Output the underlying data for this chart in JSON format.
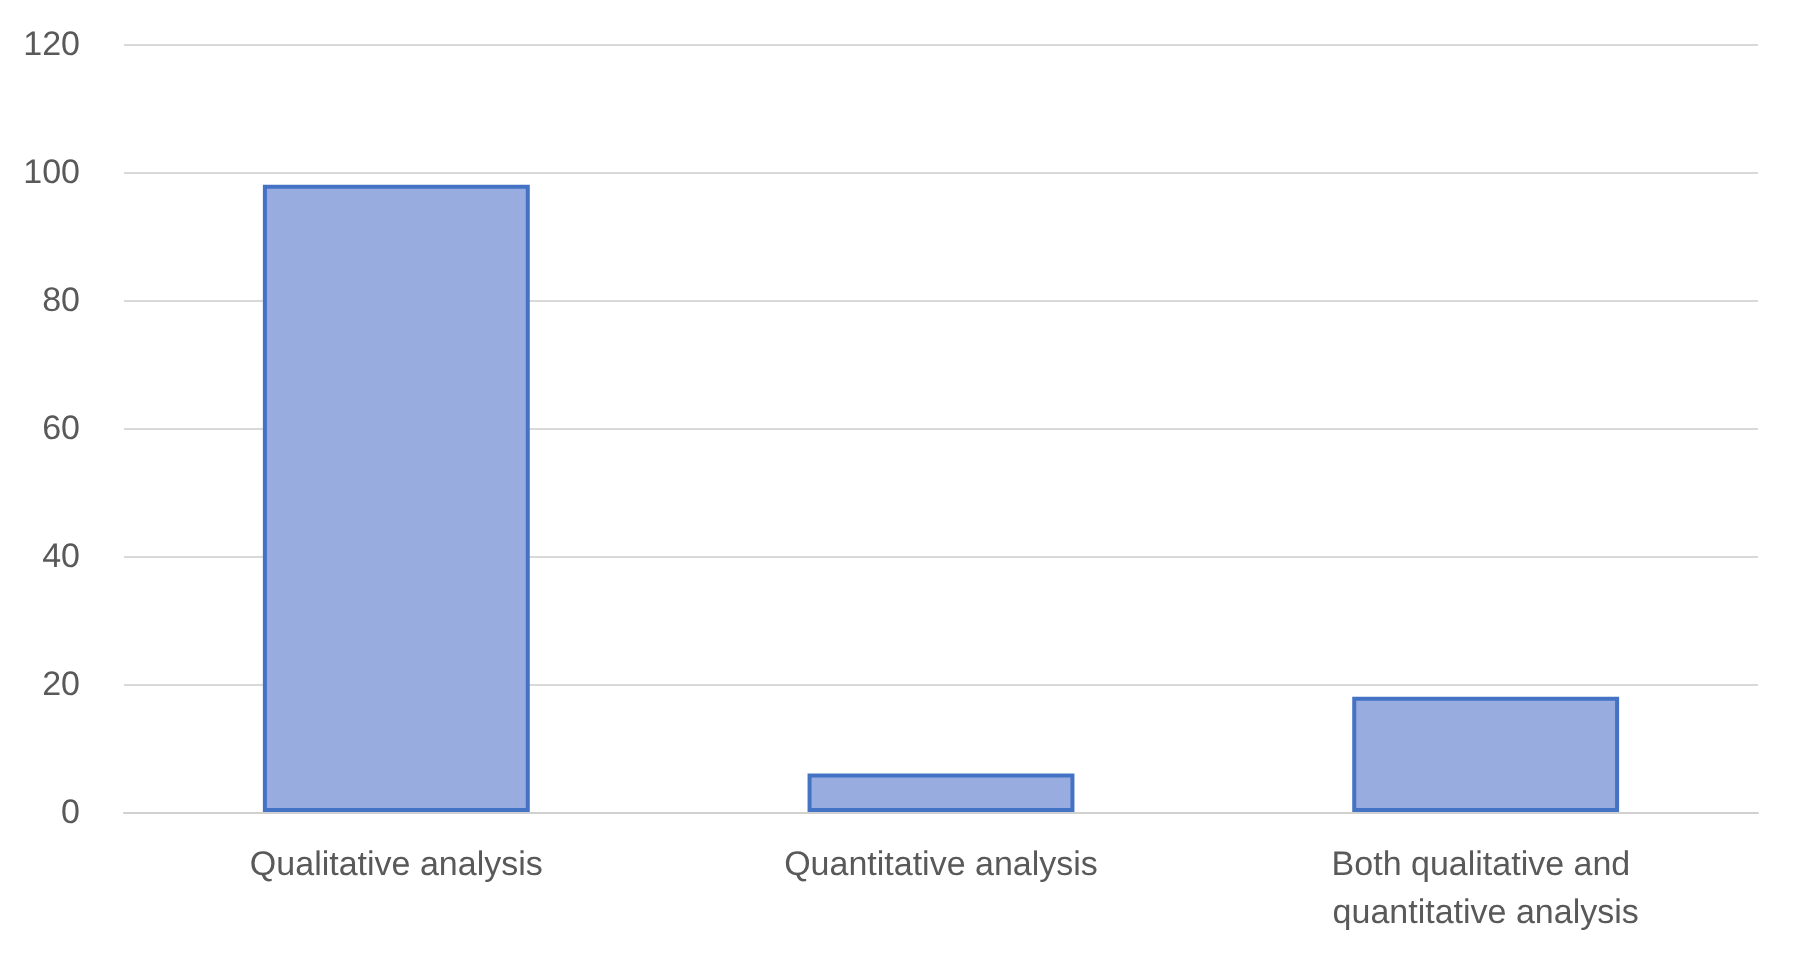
{
  "chart_data": {
    "type": "bar",
    "categories": [
      "Qualitative analysis",
      "Quantitative analysis",
      "Both qualitative and quantitative analysis"
    ],
    "values": [
      98,
      6,
      18
    ],
    "color": "#99ace0",
    "ylim": [
      0,
      120
    ],
    "yticks": [
      0,
      20,
      40,
      60,
      80,
      100,
      120
    ],
    "grid": "y"
  }
}
